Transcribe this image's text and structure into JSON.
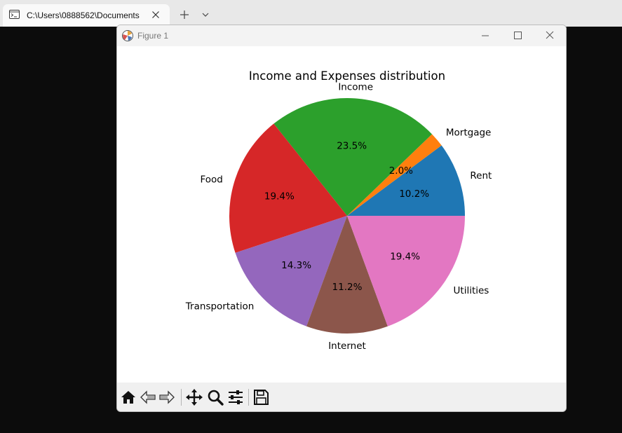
{
  "terminal": {
    "tab_title": "C:\\Users\\0888562\\Documents",
    "tab_icon": "terminal-icon",
    "close_tab_icon": "close-icon",
    "new_tab_icon": "plus-icon",
    "dropdown_icon": "chevron-down-icon"
  },
  "window": {
    "title": "Figure 1",
    "app_icon": "matplotlib-icon",
    "buttons": [
      "minimize-icon",
      "maximize-icon",
      "close-icon"
    ]
  },
  "toolbar": {
    "tools": [
      "home-icon",
      "back-arrow-icon",
      "forward-arrow-icon",
      "pan-move-icon",
      "zoom-magnifier-icon",
      "configure-subplots-icon",
      "save-floppy-icon"
    ]
  },
  "chart_data": {
    "type": "pie",
    "title": "Income and Expenses distribution",
    "start_angle_deg": 0,
    "direction": "counterclockwise",
    "slices": [
      {
        "label": "Rent",
        "value": 10.2,
        "pct_label": "10.2%",
        "color": "#1f77b4"
      },
      {
        "label": "Mortgage",
        "value": 2.0,
        "pct_label": "2.0%",
        "color": "#ff7f0e"
      },
      {
        "label": "Income",
        "value": 23.5,
        "pct_label": "23.5%",
        "color": "#2ca02c"
      },
      {
        "label": "Food",
        "value": 19.4,
        "pct_label": "19.4%",
        "color": "#d62728"
      },
      {
        "label": "Transportation",
        "value": 14.3,
        "pct_label": "14.3%",
        "color": "#9467bd"
      },
      {
        "label": "Internet",
        "value": 11.2,
        "pct_label": "11.2%",
        "color": "#8c564b"
      },
      {
        "label": "Utilities",
        "value": 19.4,
        "pct_label": "19.4%",
        "color": "#e377c2"
      }
    ]
  }
}
